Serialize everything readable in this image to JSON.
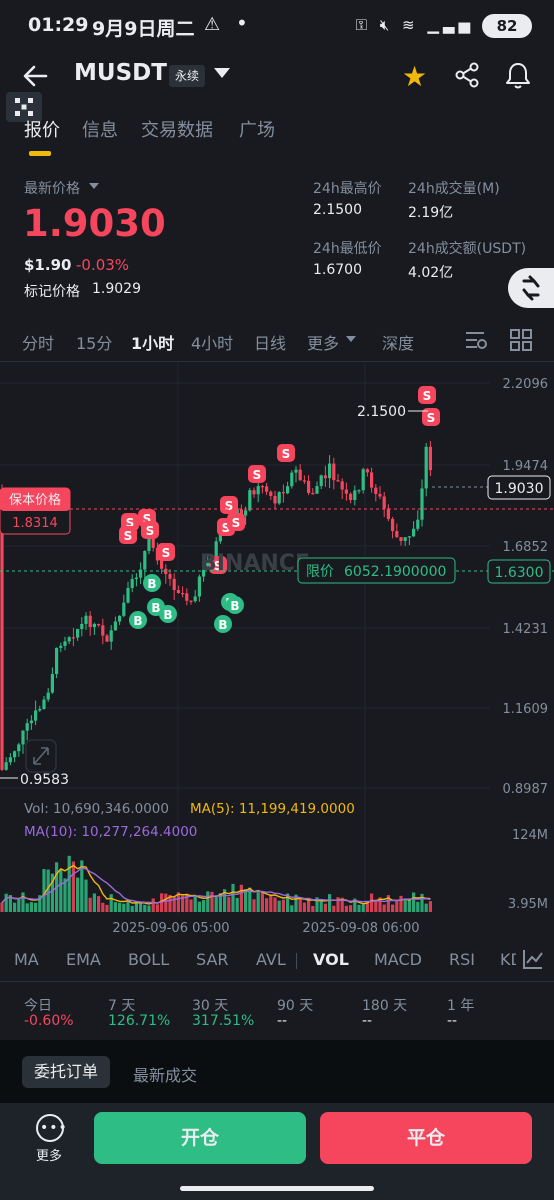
{
  "status_bar": {
    "time": "01:29",
    "date": "9月9日周二",
    "warning": "⚠",
    "dot": "•",
    "battery": "82",
    "icons": [
      "key-icon",
      "mute-icon",
      "wifi-icon",
      "signal-icon",
      "signal-icon"
    ]
  },
  "header": {
    "symbol": "MUSDT",
    "contract_type": "永续",
    "star_color": "#f0b90b"
  },
  "tabs": [
    {
      "label": "报价",
      "active": true
    },
    {
      "label": "信息",
      "active": false
    },
    {
      "label": "交易数据",
      "active": false
    },
    {
      "label": "广场",
      "active": false
    }
  ],
  "price": {
    "last_label": "最新价格",
    "last_price": "1.9030",
    "usd_price": "$1.90",
    "change_pct": "-0.03%",
    "mark_label": "标记价格",
    "mark_price": "1.9029"
  },
  "stats": {
    "high_label": "24h最高价",
    "high_value": "2.1500",
    "vol_label": "24h成交量(M)",
    "vol_value": "2.19亿",
    "low_label": "24h最低价",
    "low_value": "1.6700",
    "turnover_label": "24h成交额(USDT)",
    "turnover_value": "4.02亿"
  },
  "intervals": [
    {
      "label": "分时",
      "active": false
    },
    {
      "label": "15分",
      "active": false
    },
    {
      "label": "1小时",
      "active": true
    },
    {
      "label": "4小时",
      "active": false
    },
    {
      "label": "日线",
      "active": false
    },
    {
      "label": "更多",
      "active": false
    },
    {
      "label": "深度",
      "active": false
    }
  ],
  "chart": {
    "y_axis": [
      "2.2096",
      "1.9474",
      "1.6852",
      "1.4231",
      "1.1609",
      "0.8987"
    ],
    "current_price": "1.9030",
    "high_marker": "2.1500",
    "low_marker": "0.9583",
    "breakeven_label": "保本价格",
    "breakeven_value": "1.8314",
    "limit_label": "限价",
    "limit_value": "6052.1900000",
    "limit_price": "1.6300",
    "watermark": "BINANCE",
    "x_axis": [
      "2025-09-06 05:00",
      "2025-09-08 06:00"
    ],
    "vol_text": "Vol: 10,690,346.0000",
    "ma5_text": "MA(5): 11,199,419.0000",
    "ma10_text": "MA(10): 10,277,264.4000",
    "vol_axis": [
      "124M",
      "3.95M"
    ],
    "colors": {
      "up": "#2ebd85",
      "down": "#f6465d",
      "ma5": "#f0b90b",
      "ma10": "#9c6ade"
    }
  },
  "indicators": [
    {
      "label": "MA",
      "active": false
    },
    {
      "label": "EMA",
      "active": false
    },
    {
      "label": "BOLL",
      "active": false
    },
    {
      "label": "SAR",
      "active": false
    },
    {
      "label": "AVL",
      "active": false
    },
    {
      "label": "VOL",
      "active": true
    },
    {
      "label": "MACD",
      "active": false
    },
    {
      "label": "RSI",
      "active": false
    },
    {
      "label": "KD",
      "active": false
    }
  ],
  "performance": [
    {
      "label": "今日",
      "value": "-0.60%",
      "color": "#f6465d"
    },
    {
      "label": "7 天",
      "value": "126.71%",
      "color": "#2ebd85"
    },
    {
      "label": "30 天",
      "value": "317.51%",
      "color": "#2ebd85"
    },
    {
      "label": "90 天",
      "value": "--",
      "color": "#eaecef"
    },
    {
      "label": "180 天",
      "value": "--",
      "color": "#eaecef"
    },
    {
      "label": "1 年",
      "value": "--",
      "color": "#eaecef"
    }
  ],
  "bottom": {
    "order_tab": "委托订单",
    "trades_tab": "最新成交",
    "more_label": "更多",
    "open_label": "开仓",
    "close_label": "平仓"
  }
}
